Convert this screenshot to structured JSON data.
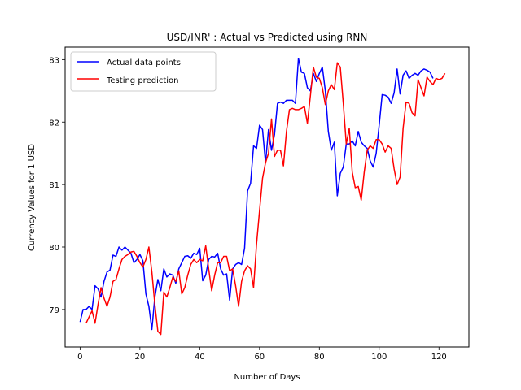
{
  "chart_data": {
    "type": "line",
    "title": "USD/INR' : Actual vs Predicted using RNN",
    "xlabel": "Number of Days",
    "ylabel": "Currency Values for 1 USD",
    "xlim": [
      -5,
      130
    ],
    "ylim": [
      78.4,
      83.2
    ],
    "xticks": [
      0,
      20,
      40,
      60,
      80,
      100,
      120
    ],
    "yticks": [
      79,
      80,
      81,
      82,
      83
    ],
    "grid": false,
    "legend_position": "upper-left",
    "series": [
      {
        "name": "Actual data points",
        "color": "#0000ff",
        "x_start": 0,
        "values": [
          78.8,
          79.0,
          79.0,
          79.05,
          79.0,
          79.38,
          79.33,
          79.2,
          79.45,
          79.6,
          79.63,
          79.87,
          79.85,
          80.0,
          79.95,
          80.0,
          79.95,
          79.9,
          79.75,
          79.8,
          79.88,
          79.78,
          79.25,
          79.05,
          78.68,
          79.2,
          79.48,
          79.3,
          79.65,
          79.52,
          79.57,
          79.55,
          79.42,
          79.65,
          79.75,
          79.85,
          79.86,
          79.82,
          79.9,
          79.88,
          79.98,
          79.46,
          79.55,
          79.8,
          79.85,
          79.84,
          79.9,
          79.65,
          79.55,
          79.57,
          79.15,
          79.65,
          79.72,
          79.75,
          79.72,
          79.98,
          80.9,
          81.02,
          81.62,
          81.58,
          81.95,
          81.88,
          81.35,
          81.88,
          81.55,
          81.8,
          82.3,
          82.32,
          82.3,
          82.35,
          82.35,
          82.35,
          82.3,
          83.02,
          82.8,
          82.78,
          82.55,
          82.5,
          82.78,
          82.65,
          82.78,
          82.88,
          82.5,
          81.85,
          81.55,
          81.68,
          80.82,
          81.18,
          81.28,
          81.65,
          81.65,
          81.7,
          81.62,
          81.85,
          81.68,
          81.62,
          81.58,
          81.38,
          81.28,
          81.5,
          81.95,
          82.44,
          82.43,
          82.4,
          82.3,
          82.47,
          82.85,
          82.45,
          82.75,
          82.82,
          82.7,
          82.75,
          82.78,
          82.75,
          82.82,
          82.85,
          82.83,
          82.8,
          82.7
        ]
      },
      {
        "name": "Testing prediction",
        "color": "#ff0000",
        "x_start": 2,
        "values": [
          78.78,
          78.88,
          78.98,
          78.78,
          79.08,
          79.35,
          79.18,
          79.05,
          79.2,
          79.45,
          79.48,
          79.65,
          79.8,
          79.85,
          79.88,
          79.92,
          79.93,
          79.85,
          79.75,
          79.68,
          79.8,
          80.0,
          79.6,
          79.08,
          78.65,
          78.6,
          79.28,
          79.2,
          79.35,
          79.52,
          79.45,
          79.62,
          79.25,
          79.35,
          79.55,
          79.72,
          79.8,
          79.75,
          79.8,
          79.78,
          80.02,
          79.65,
          79.3,
          79.55,
          79.75,
          79.75,
          79.85,
          79.85,
          79.62,
          79.65,
          79.38,
          79.05,
          79.45,
          79.62,
          79.7,
          79.65,
          79.35,
          80.05,
          80.58,
          81.1,
          81.35,
          81.5,
          82.05,
          81.45,
          81.55,
          81.55,
          81.3,
          81.85,
          82.2,
          82.22,
          82.2,
          82.2,
          82.22,
          82.25,
          81.98,
          82.42,
          82.88,
          82.72,
          82.7,
          82.55,
          82.28,
          82.5,
          82.6,
          82.52,
          82.95,
          82.88,
          82.3,
          81.65,
          81.9,
          81.2,
          80.95,
          80.97,
          80.75,
          81.2,
          81.55,
          81.62,
          81.58,
          81.72,
          81.72,
          81.65,
          81.52,
          81.62,
          81.58,
          81.25,
          81.0,
          81.12,
          81.9,
          82.32,
          82.3,
          82.15,
          82.1,
          82.68,
          82.55,
          82.42,
          82.72,
          82.65,
          82.6,
          82.7,
          82.68,
          82.7,
          82.78
        ]
      }
    ]
  }
}
